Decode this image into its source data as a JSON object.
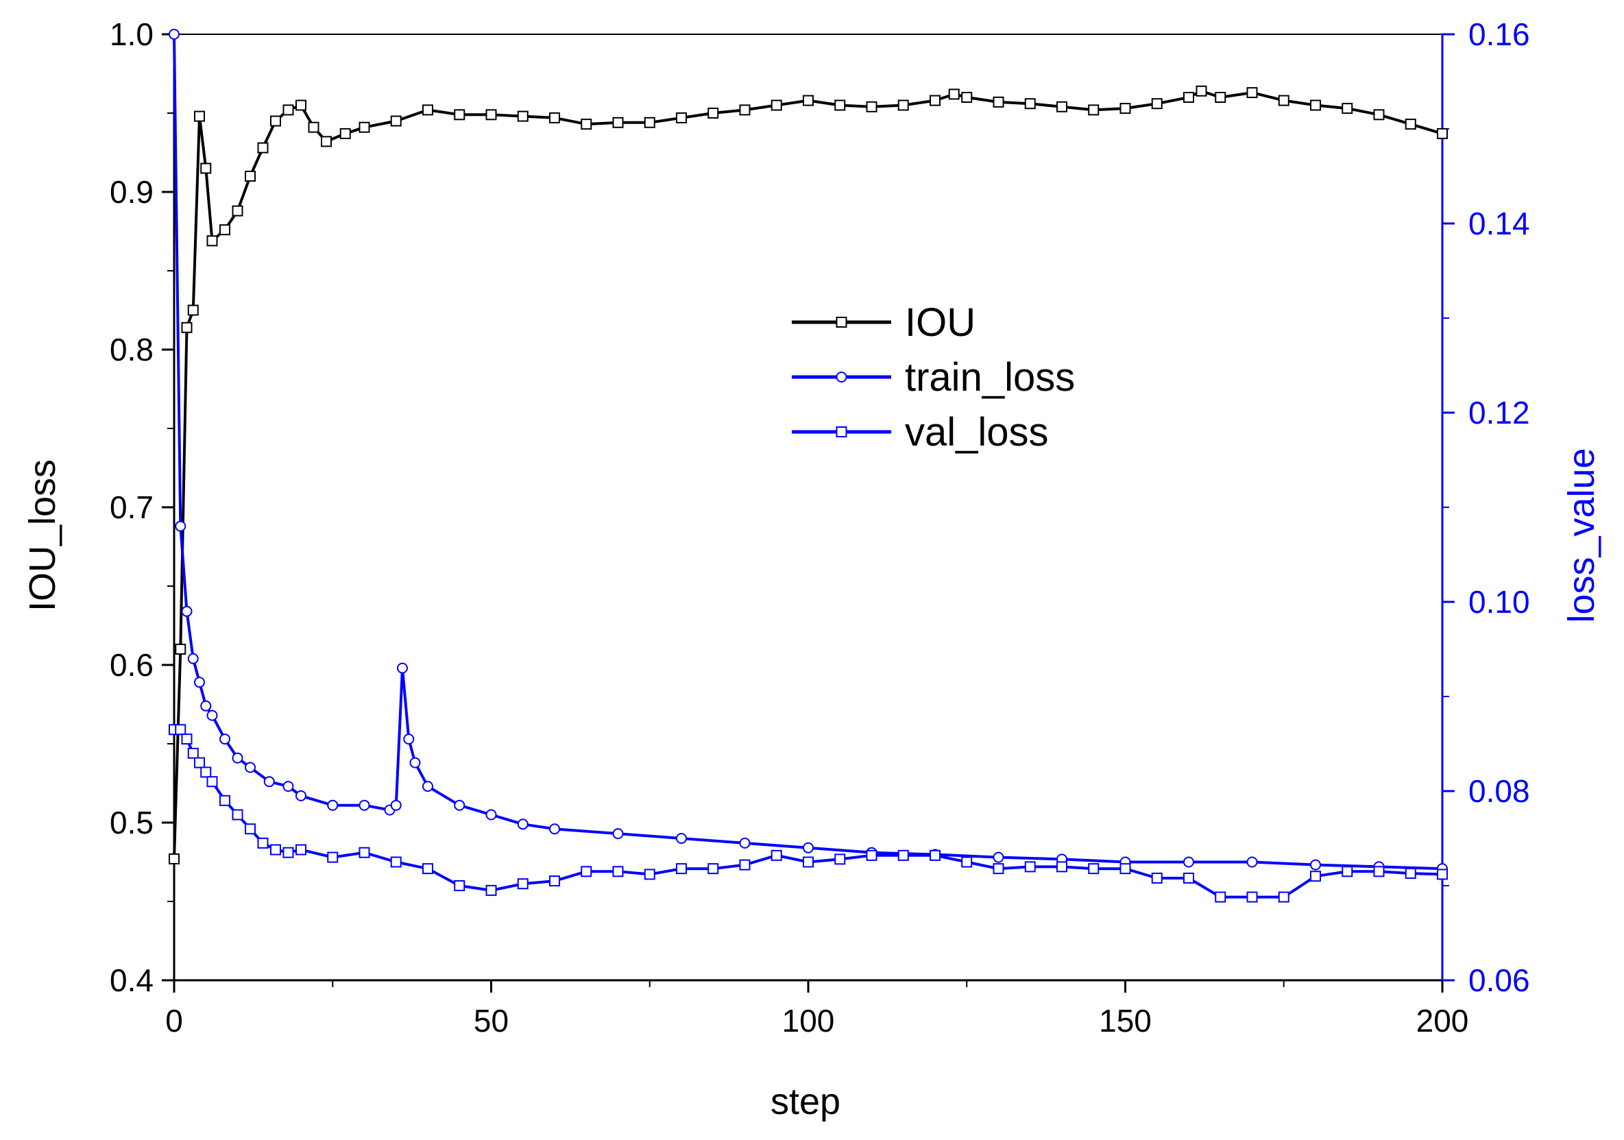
{
  "chart_data": {
    "type": "line",
    "xlabel": "step",
    "ylabel_left": "IOU_loss",
    "ylabel_right": "loss_value",
    "xlim": [
      0,
      200
    ],
    "ylim_left": [
      0.4,
      1.0
    ],
    "ylim_right": [
      0.06,
      0.16
    ],
    "x_ticks": [
      "0",
      "50",
      "100",
      "150",
      "200"
    ],
    "y_ticks_left": [
      "0.4",
      "0.5",
      "0.6",
      "0.7",
      "0.8",
      "0.9",
      "1.0"
    ],
    "y_ticks_right": [
      "0.06",
      "0.08",
      "0.10",
      "0.12",
      "0.14",
      "0.16"
    ],
    "grid": false,
    "legend_placement": "upper-center",
    "colors": {
      "iou": "#000000",
      "loss": "#0000ff",
      "right_axis": "#0000ff"
    },
    "series": [
      {
        "name": "IOU",
        "axis": "left",
        "marker": "square",
        "x": [
          0,
          1,
          2,
          3,
          4,
          5,
          6,
          8,
          10,
          12,
          14,
          16,
          18,
          20,
          22,
          24,
          27,
          30,
          35,
          40,
          45,
          50,
          55,
          60,
          65,
          70,
          75,
          80,
          85,
          90,
          95,
          100,
          105,
          110,
          115,
          120,
          123,
          125,
          130,
          135,
          140,
          145,
          150,
          155,
          160,
          162,
          165,
          170,
          175,
          180,
          185,
          190,
          195,
          200
        ],
        "values": [
          0.477,
          0.61,
          0.814,
          0.825,
          0.948,
          0.915,
          0.869,
          0.876,
          0.888,
          0.91,
          0.928,
          0.945,
          0.952,
          0.955,
          0.941,
          0.932,
          0.937,
          0.941,
          0.945,
          0.952,
          0.949,
          0.949,
          0.948,
          0.947,
          0.943,
          0.944,
          0.944,
          0.947,
          0.95,
          0.952,
          0.955,
          0.958,
          0.955,
          0.954,
          0.955,
          0.958,
          0.962,
          0.96,
          0.957,
          0.956,
          0.954,
          0.952,
          0.953,
          0.956,
          0.96,
          0.964,
          0.96,
          0.963,
          0.958,
          0.955,
          0.953,
          0.949,
          0.943,
          0.937
        ]
      },
      {
        "name": "train_loss",
        "axis": "right",
        "marker": "circle",
        "x": [
          0,
          1,
          2,
          3,
          4,
          5,
          6,
          8,
          10,
          12,
          15,
          18,
          20,
          25,
          30,
          34,
          35,
          36,
          37,
          38,
          40,
          45,
          50,
          55,
          60,
          70,
          80,
          90,
          100,
          110,
          120,
          130,
          140,
          150,
          160,
          170,
          180,
          190,
          200
        ],
        "values": [
          0.16,
          0.108,
          0.099,
          0.094,
          0.0915,
          0.089,
          0.088,
          0.0855,
          0.0835,
          0.0825,
          0.081,
          0.0805,
          0.0795,
          0.0785,
          0.0785,
          0.078,
          0.0785,
          0.093,
          0.0855,
          0.083,
          0.0805,
          0.0785,
          0.0775,
          0.0765,
          0.076,
          0.0755,
          0.075,
          0.0745,
          0.074,
          0.0735,
          0.0733,
          0.073,
          0.0728,
          0.0725,
          0.0725,
          0.0725,
          0.0722,
          0.072,
          0.0718
        ]
      },
      {
        "name": "val_loss",
        "axis": "right",
        "marker": "square",
        "x": [
          0,
          1,
          2,
          3,
          4,
          5,
          6,
          8,
          10,
          12,
          14,
          16,
          18,
          20,
          25,
          30,
          35,
          40,
          45,
          50,
          55,
          60,
          65,
          70,
          75,
          80,
          85,
          90,
          95,
          100,
          105,
          110,
          115,
          120,
          125,
          130,
          135,
          140,
          145,
          150,
          155,
          160,
          165,
          170,
          175,
          180,
          185,
          190,
          195,
          200
        ],
        "values": [
          0.0865,
          0.0865,
          0.0855,
          0.084,
          0.083,
          0.082,
          0.081,
          0.079,
          0.0775,
          0.076,
          0.0745,
          0.0738,
          0.0735,
          0.0738,
          0.073,
          0.0735,
          0.0725,
          0.0718,
          0.07,
          0.0695,
          0.0702,
          0.0705,
          0.0715,
          0.0715,
          0.0712,
          0.0718,
          0.0718,
          0.0722,
          0.0732,
          0.0725,
          0.0728,
          0.0732,
          0.0732,
          0.0732,
          0.0725,
          0.0718,
          0.072,
          0.072,
          0.0718,
          0.0718,
          0.0708,
          0.0708,
          0.0688,
          0.0688,
          0.0688,
          0.071,
          0.0715,
          0.0715,
          0.0713,
          0.0712
        ]
      }
    ]
  }
}
